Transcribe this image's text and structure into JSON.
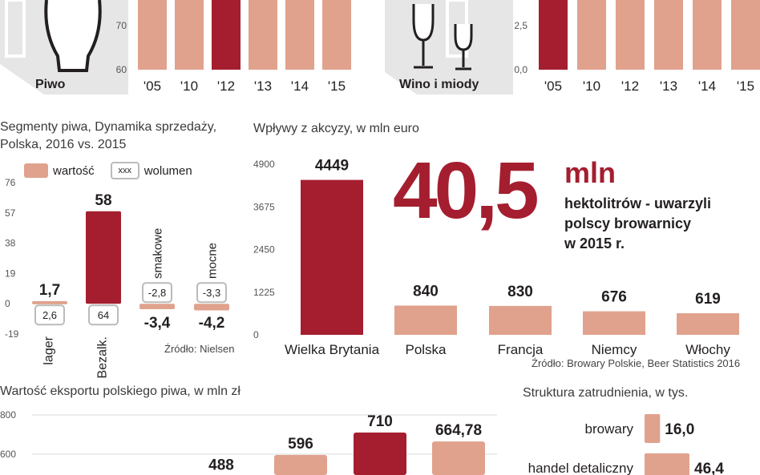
{
  "colors": {
    "dark": "#a41e2f",
    "light": "#e0a28d",
    "text": "#231f20",
    "icon_bg": "#e6e6e6",
    "grid": "#d9d9d9"
  },
  "icons": {
    "beer": "beer-glass-icon",
    "wine": "wine-glasses-icon"
  },
  "top_left": {
    "label": "Piwo",
    "chart_data": {
      "type": "bar",
      "categories": [
        "'05",
        "'10",
        "'12",
        "'13",
        "'14",
        "'15"
      ],
      "yticks": [
        "70",
        "60"
      ],
      "ylim": [
        60,
        80
      ],
      "values": [
        80,
        80,
        80,
        80,
        80,
        80
      ],
      "highlight": "'12"
    }
  },
  "top_right": {
    "label": "Wino i miody",
    "chart_data": {
      "type": "bar",
      "categories": [
        "'05",
        "'10",
        "'12",
        "'13",
        "'14",
        "'15"
      ],
      "yticks": [
        "2,5",
        "0,0"
      ],
      "ylim": [
        0,
        4.5
      ],
      "values": [
        4.5,
        4.5,
        4.5,
        4.5,
        4.5,
        4.5
      ],
      "highlight": "'05"
    }
  },
  "segments": {
    "title_line1": "Segmenty piwa, Dynamika sprzedaży,",
    "title_line2": "Polska, 2016 vs. 2015",
    "legend": {
      "value": "wartość",
      "volume_swatch": "xxx",
      "volume": "wolumen"
    },
    "source": "Źródło: Nielsen",
    "chart_data": {
      "type": "bar",
      "categories": [
        "lager",
        "Bezalk.",
        "smakowe",
        "mocne"
      ],
      "yticks": [
        "76",
        "57",
        "38",
        "19",
        "0",
        "-19"
      ],
      "ylim": [
        -19,
        76
      ],
      "series": [
        {
          "name": "wartość",
          "values": [
            1.7,
            58,
            -3.4,
            -4.2
          ]
        },
        {
          "name": "wolumen",
          "values": [
            2.6,
            64,
            -2.8,
            -3.3
          ]
        }
      ],
      "value_labels": [
        "1,7",
        "58",
        "-3,4",
        "-4,2"
      ],
      "volume_labels": [
        "2,6",
        "64",
        "-2,8",
        "-3,3"
      ]
    }
  },
  "excise": {
    "title": "Wpływy z akcyzy, w mln euro",
    "source": "Źródło: Browary Polskie, Beer Statistics 2016",
    "chart_data": {
      "type": "bar",
      "categories": [
        "Wielka Brytania",
        "Polska",
        "Francja",
        "Niemcy",
        "Włochy"
      ],
      "values": [
        4449,
        840,
        830,
        676,
        619
      ],
      "yticks": [
        "4900",
        "3675",
        "2450",
        "1225",
        "0"
      ],
      "ylim": [
        0,
        4900
      ]
    }
  },
  "callout": {
    "big": "40,5",
    "unit": "mln",
    "line1": "hektolitrów - uwarzyli",
    "line2": "polscy browarnicy",
    "line3": "w 2015 r."
  },
  "export": {
    "title": "Wartość eksportu polskiego piwa, w mln zł",
    "chart_data": {
      "type": "bar",
      "yticks": [
        "800",
        "600"
      ],
      "ylim": [
        400,
        800
      ],
      "values": [
        488,
        596,
        710,
        664.78
      ],
      "value_labels": [
        "488",
        "596",
        "710",
        "664,78"
      ]
    }
  },
  "employment": {
    "title": "Struktura zatrudnienia, w tys.",
    "chart_data": {
      "type": "bar",
      "categories": [
        "browary",
        "handel detaliczny"
      ],
      "values": [
        16.0,
        46.4
      ],
      "value_labels": [
        "16,0",
        "46,4"
      ]
    }
  }
}
